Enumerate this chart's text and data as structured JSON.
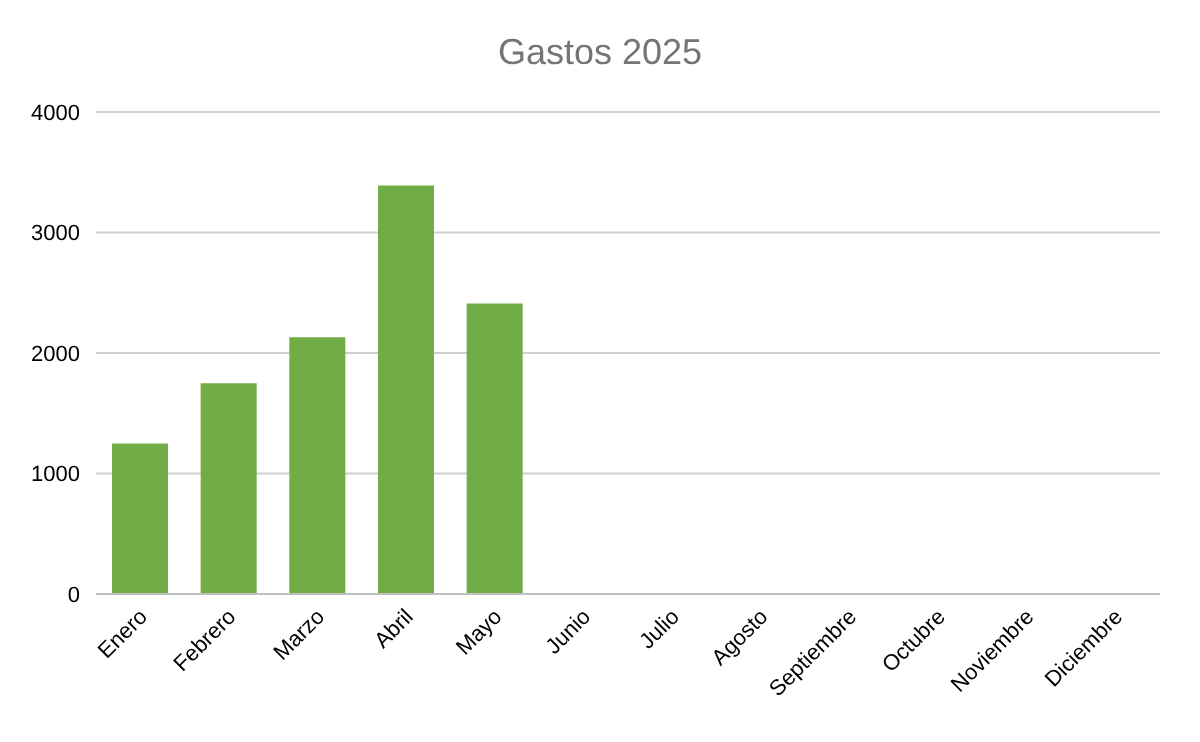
{
  "chart_data": {
    "type": "bar",
    "title": "Gastos 2025",
    "categories": [
      "Enero",
      "Febrero",
      "Marzo",
      "Abril",
      "Mayo",
      "Junio",
      "Julio",
      "Agosto",
      "Septiembre",
      "Octubre",
      "Noviembre",
      "Diciembre"
    ],
    "values": [
      1250,
      1750,
      2130,
      3390,
      2410,
      null,
      null,
      null,
      null,
      null,
      null,
      null
    ],
    "color": "#70ad47",
    "ylim": [
      0,
      4000
    ],
    "yticks": [
      0,
      1000,
      2000,
      3000,
      4000
    ],
    "grid": "y"
  }
}
